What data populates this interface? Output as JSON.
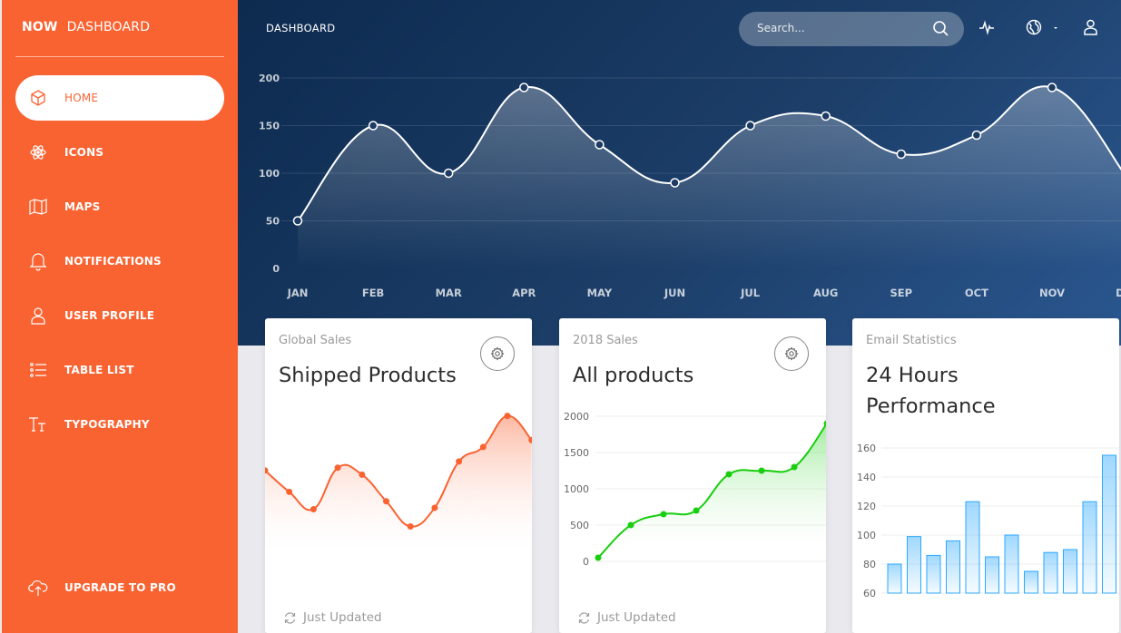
{
  "sidebar": {
    "brand_logo": "NOW",
    "brand_name": "DASHBOARD",
    "items": [
      {
        "label": "HOME",
        "icon": "cube-icon",
        "active": true
      },
      {
        "label": "ICONS",
        "icon": "atom-icon"
      },
      {
        "label": "MAPS",
        "icon": "map-icon"
      },
      {
        "label": "NOTIFICATIONS",
        "icon": "bell-icon"
      },
      {
        "label": "USER PROFILE",
        "icon": "user-icon"
      },
      {
        "label": "TABLE LIST",
        "icon": "list-icon"
      },
      {
        "label": "TYPOGRAPHY",
        "icon": "text-icon"
      }
    ],
    "upgrade_label": "UPGRADE TO PRO",
    "accent": "#f96332"
  },
  "header": {
    "title": "DASHBOARD",
    "search_placeholder": "Search..."
  },
  "main_chart": {
    "type": "line",
    "categories": [
      "JAN",
      "FEB",
      "MAR",
      "APR",
      "MAY",
      "JUN",
      "JUL",
      "AUG",
      "SEP",
      "OCT",
      "NOV",
      "DEC"
    ],
    "values": [
      50,
      150,
      100,
      190,
      130,
      90,
      150,
      160,
      120,
      140,
      190,
      95
    ],
    "yticks": [
      0,
      50,
      100,
      150,
      200
    ],
    "ylim": [
      0,
      200
    ]
  },
  "cards": [
    {
      "category": "Global Sales",
      "title": "Shipped Products",
      "footer": "Just Updated",
      "chart_data": {
        "type": "line",
        "values": [
          542,
          480,
          430,
          550,
          530,
          453,
          380,
          434,
          568,
          610,
          700,
          630
        ],
        "color": "#f96332"
      }
    },
    {
      "category": "2018 Sales",
      "title": "All products",
      "footer": "Just Updated",
      "chart_data": {
        "type": "line",
        "values": [
          50,
          500,
          650,
          700,
          1200,
          1250,
          1300,
          1900
        ],
        "yticks": [
          0,
          500,
          1000,
          1500,
          2000
        ],
        "ylim": [
          0,
          2000
        ],
        "color": "#18ce0f"
      }
    },
    {
      "category": "Email Statistics",
      "title_line1": "24 Hours",
      "title_line2": "Performance",
      "chart_data": {
        "type": "bar",
        "values": [
          80,
          99,
          86,
          96,
          123,
          85,
          100,
          75,
          88,
          90,
          123,
          155
        ],
        "yticks": [
          60,
          80,
          100,
          120,
          140,
          160
        ],
        "ylim": [
          60,
          160
        ],
        "color": "#2ca8ff"
      }
    }
  ]
}
